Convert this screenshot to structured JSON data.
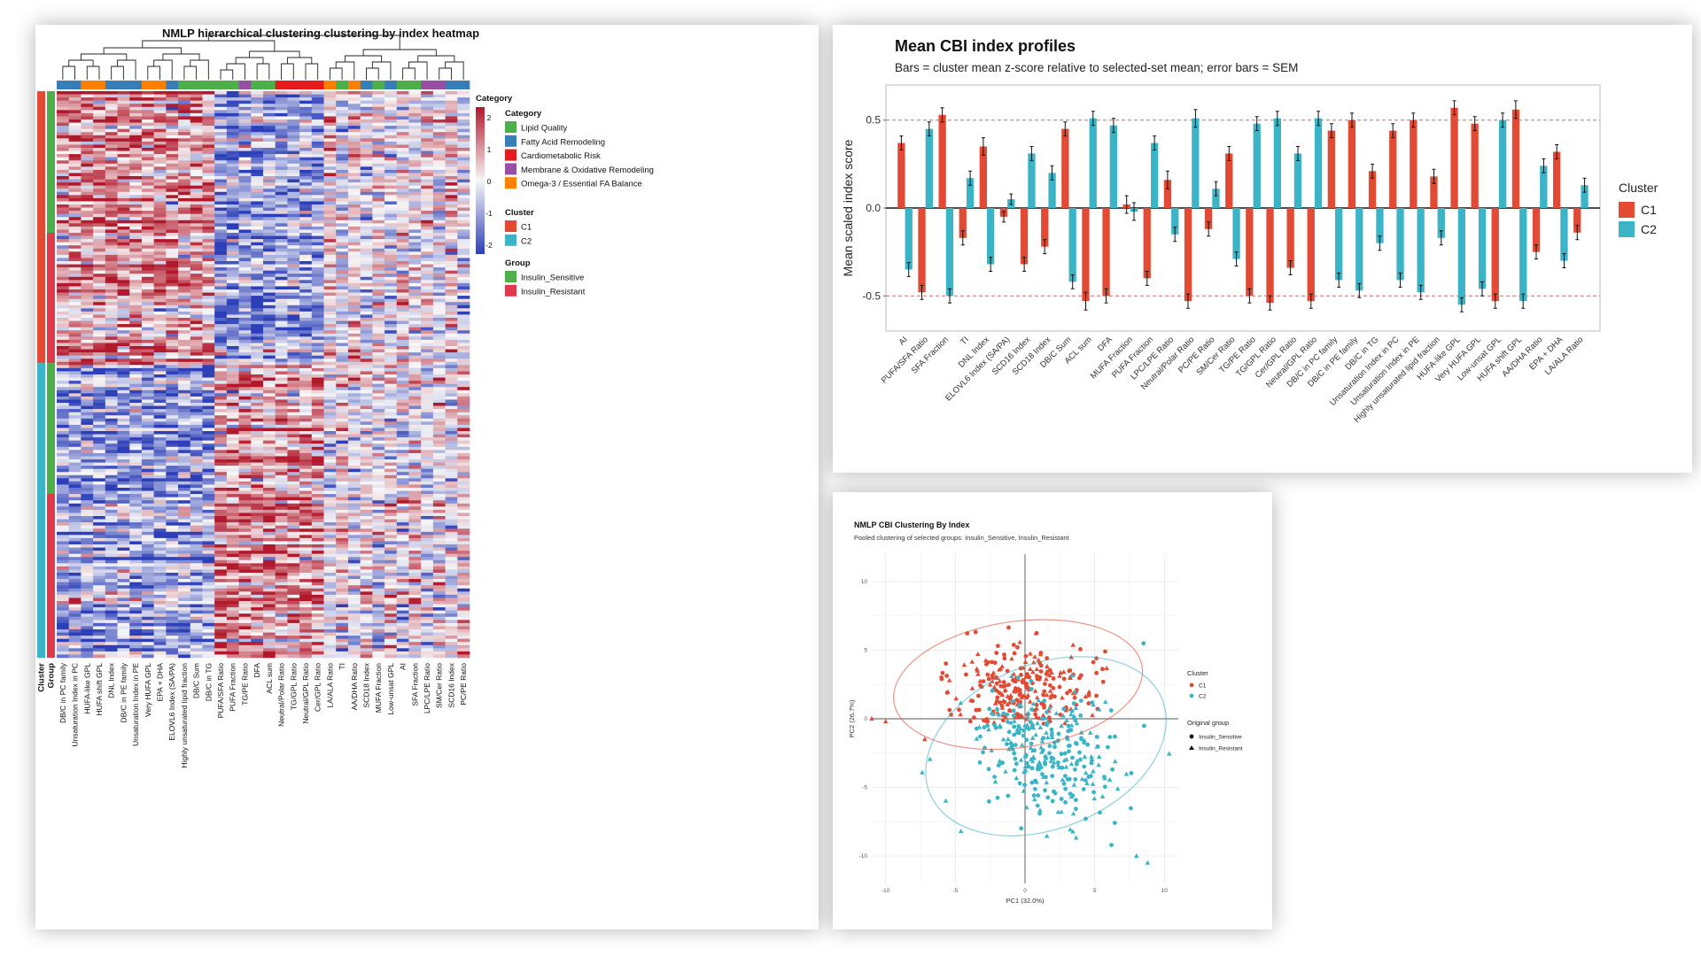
{
  "heatmap": {
    "title": "NMLP hierarchical clustering clustering by index heatmap",
    "color_scale": {
      "title": "Category",
      "ticks": [
        "2",
        "1",
        "0",
        "-1",
        "-2"
      ],
      "colors": [
        "#b2182b",
        "#f7f7f7",
        "#2c3fb8"
      ]
    },
    "legend_category": {
      "title": "Category",
      "items": [
        {
          "label": "Lipid Quality",
          "color": "#4daf4a"
        },
        {
          "label": "Fatty Acid Remodeling",
          "color": "#377eb8"
        },
        {
          "label": "Cardiometabolic Risk",
          "color": "#e41a1c"
        },
        {
          "label": "Membrane & Oxidative Remodeling",
          "color": "#984ea3"
        },
        {
          "label": "Omega-3 / Essential FA Balance",
          "color": "#ff7f00"
        }
      ]
    },
    "legend_cluster": {
      "title": "Cluster",
      "items": [
        {
          "label": "C1",
          "color": "#e24a33"
        },
        {
          "label": "C2",
          "color": "#3cb4c8"
        }
      ]
    },
    "legend_group": {
      "title": "Group",
      "items": [
        {
          "label": "Insulin_Sensitive",
          "color": "#4daf4a"
        },
        {
          "label": "Insulin_Resistant",
          "color": "#e0394b"
        }
      ]
    },
    "row_annotation_labels": [
      "Cluster",
      "Group"
    ],
    "columns": [
      {
        "label": "DB/C in PC family",
        "cat": 1
      },
      {
        "label": "Unsaturation Index in PC",
        "cat": 1
      },
      {
        "label": "HUFA-like GPL",
        "cat": 4
      },
      {
        "label": "HUFA shift GPL",
        "cat": 4
      },
      {
        "label": "DNL Index",
        "cat": 1
      },
      {
        "label": "DB/C in PE family",
        "cat": 1
      },
      {
        "label": "Unsaturation Index in PE",
        "cat": 1
      },
      {
        "label": "Very HUFA GPL",
        "cat": 4
      },
      {
        "label": "EPA + DHA",
        "cat": 4
      },
      {
        "label": "ELOVL6 Index (SA/PA)",
        "cat": 1
      },
      {
        "label": "Highly unsaturated lipid fraction",
        "cat": 0
      },
      {
        "label": "DB/C Sum",
        "cat": 0
      },
      {
        "label": "DB/C in TG",
        "cat": 0
      },
      {
        "label": "PUFA/SFA Ratio",
        "cat": 0
      },
      {
        "label": "PUFA Fraction",
        "cat": 0
      },
      {
        "label": "TG/PE Ratio",
        "cat": 3
      },
      {
        "label": "DFA",
        "cat": 0
      },
      {
        "label": "ACL sum",
        "cat": 0
      },
      {
        "label": "Neutral/Polar Ratio",
        "cat": 2
      },
      {
        "label": "TG/GPL Ratio",
        "cat": 2
      },
      {
        "label": "Neutral/GPL Ratio",
        "cat": 2
      },
      {
        "label": "Cer/GPL Ratio",
        "cat": 2
      },
      {
        "label": "LA/ALA Ratio",
        "cat": 4
      },
      {
        "label": "TI",
        "cat": 0
      },
      {
        "label": "AA/DHA Ratio",
        "cat": 4
      },
      {
        "label": "SCD18 Index",
        "cat": 1
      },
      {
        "label": "MUFA Fraction",
        "cat": 0
      },
      {
        "label": "Low-unsat GPL",
        "cat": 1
      },
      {
        "label": "AI",
        "cat": 0
      },
      {
        "label": "SFA Fraction",
        "cat": 0
      },
      {
        "label": "LPC/LPE Ratio",
        "cat": 3
      },
      {
        "label": "SM/Cer Ratio",
        "cat": 3
      },
      {
        "label": "SCD16 Index",
        "cat": 1
      },
      {
        "label": "PC/PE Ratio",
        "cat": 1
      }
    ]
  },
  "chart_data": [
    {
      "type": "heatmap",
      "title": "NMLP hierarchical clustering clustering by index heatmap",
      "columns": [
        "DB/C in PC family",
        "Unsaturation Index in PC",
        "HUFA-like GPL",
        "HUFA shift GPL",
        "DNL Index",
        "DB/C in PE family",
        "Unsaturation Index in PE",
        "Very HUFA GPL",
        "EPA + DHA",
        "ELOVL6 Index (SA/PA)",
        "Highly unsaturated lipid fraction",
        "DB/C Sum",
        "DB/C in TG",
        "PUFA/SFA Ratio",
        "PUFA Fraction",
        "TG/PE Ratio",
        "DFA",
        "ACL sum",
        "Neutral/Polar Ratio",
        "TG/GPL Ratio",
        "Neutral/GPL Ratio",
        "Cer/GPL Ratio",
        "LA/ALA Ratio",
        "TI",
        "AA/DHA Ratio",
        "SCD18 Index",
        "MUFA Fraction",
        "Low-unsat GPL",
        "AI",
        "SFA Fraction",
        "LPC/LPE Ratio",
        "SM/Cer Ratio",
        "SCD16 Index",
        "PC/PE Ratio"
      ],
      "value_range": [
        -2,
        2
      ]
    },
    {
      "type": "bar",
      "title": "Mean CBI index profiles",
      "subtitle": "Bars = cluster mean z-score relative to selected-set mean; error bars = SEM",
      "ylabel": "Mean scaled index score",
      "legend_title": "Cluster",
      "legend_position": "right",
      "ylim": [
        -0.7,
        0.7
      ],
      "yticks": [
        "0.5",
        "0.0",
        "-0.5"
      ],
      "reference_lines": [
        0.5,
        -0.5
      ],
      "categories": [
        "AI",
        "PUFA/SFA Ratio",
        "SFA Fraction",
        "TI",
        "DNL Index",
        "ELOVL6 Index (SA/PA)",
        "SCD16 Index",
        "SCD18 Index",
        "DB/C Sum",
        "ACL sum",
        "DFA",
        "MUFA Fraction",
        "PUFA Fraction",
        "LPC/LPE Ratio",
        "Neutral/Polar Ratio",
        "PC/PE Ratio",
        "SM/Cer Ratio",
        "TG/PE Ratio",
        "TG/GPL Ratio",
        "Cer/GPL Ratio",
        "Neutral/GPL Ratio",
        "DB/C in PC family",
        "DB/C in PE family",
        "DB/C in TG",
        "Unsaturation Index in PC",
        "Unsaturation Index in PE",
        "Highly unsaturated lipid fraction",
        "HUFA-like GPL",
        "Very HUFA GPL",
        "Low-unsat GPL",
        "HUFA shift GPL",
        "AA/DHA Ratio",
        "EPA + DHA",
        "LA/ALA Ratio"
      ],
      "series": [
        {
          "name": "C1",
          "color": "#e24a33",
          "values": [
            0.37,
            -0.48,
            0.53,
            -0.17,
            0.35,
            -0.05,
            -0.32,
            -0.22,
            0.45,
            -0.53,
            -0.5,
            0.02,
            -0.4,
            0.16,
            -0.53,
            -0.12,
            0.31,
            -0.5,
            -0.54,
            -0.34,
            -0.53,
            0.44,
            0.5,
            0.21,
            0.44,
            0.5,
            0.18,
            0.57,
            0.48,
            -0.53,
            0.56,
            -0.25,
            0.32,
            -0.14
          ],
          "sem": [
            0.04,
            0.04,
            0.04,
            0.04,
            0.05,
            0.03,
            0.04,
            0.04,
            0.04,
            0.05,
            0.04,
            0.05,
            0.04,
            0.05,
            0.04,
            0.04,
            0.04,
            0.04,
            0.04,
            0.04,
            0.04,
            0.04,
            0.04,
            0.04,
            0.04,
            0.04,
            0.04,
            0.04,
            0.04,
            0.04,
            0.05,
            0.04,
            0.04,
            0.04
          ]
        },
        {
          "name": "C2",
          "color": "#3cb4c8",
          "values": [
            -0.35,
            0.45,
            -0.5,
            0.17,
            -0.32,
            0.05,
            0.31,
            0.2,
            -0.42,
            0.51,
            0.47,
            -0.02,
            0.37,
            -0.15,
            0.51,
            0.11,
            -0.29,
            0.48,
            0.51,
            0.31,
            0.51,
            -0.41,
            -0.47,
            -0.2,
            -0.41,
            -0.48,
            -0.17,
            -0.55,
            -0.46,
            0.5,
            -0.53,
            0.24,
            -0.3,
            0.13
          ],
          "sem": [
            0.04,
            0.04,
            0.04,
            0.04,
            0.04,
            0.03,
            0.04,
            0.04,
            0.04,
            0.04,
            0.04,
            0.05,
            0.04,
            0.04,
            0.05,
            0.04,
            0.04,
            0.04,
            0.04,
            0.04,
            0.04,
            0.04,
            0.04,
            0.04,
            0.04,
            0.04,
            0.04,
            0.04,
            0.04,
            0.04,
            0.04,
            0.04,
            0.04,
            0.04
          ]
        }
      ]
    },
    {
      "type": "scatter",
      "title": "NMLP CBI Clustering By Index",
      "subtitle": "Pooled clustering of selected groups: Insulin_Sensitive, Insulin_Resistant",
      "xlabel": "PC1 (32.0%)",
      "ylabel": "PC2 (26.7%)",
      "xlim": [
        -11,
        11
      ],
      "ylim": [
        -12,
        12
      ],
      "xticks": [
        "-10",
        "-5",
        "0",
        "5",
        "10"
      ],
      "yticks": [
        "10",
        "5",
        "0",
        "-5",
        "-10"
      ],
      "legend_cluster": {
        "title": "Cluster",
        "items": [
          {
            "label": "C1",
            "color": "#e24a33"
          },
          {
            "label": "C2",
            "color": "#3cb4c8"
          }
        ]
      },
      "legend_group": {
        "title": "Original group",
        "items": [
          {
            "label": "Insulin_Sensitive",
            "shape": "circle"
          },
          {
            "label": "Insulin_Resistant",
            "shape": "triangle"
          }
        ]
      },
      "ellipses": [
        {
          "cluster": "C1",
          "cx": -0.5,
          "cy": 2.5,
          "rx": 9.0,
          "ry": 4.6,
          "angle": -8
        },
        {
          "cluster": "C2",
          "cx": 1.5,
          "cy": -2.0,
          "rx": 9.0,
          "ry": 6.0,
          "angle": -22
        }
      ]
    }
  ]
}
